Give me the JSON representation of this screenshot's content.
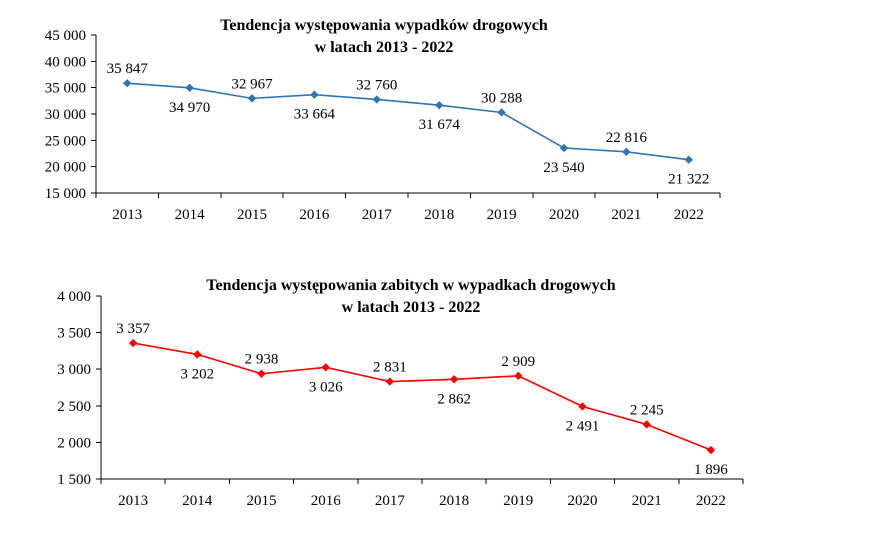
{
  "chart_data": [
    {
      "type": "line",
      "title": [
        "Tendencja występowania wypadków drogowych",
        "w latach 2013 - 2022"
      ],
      "categories": [
        "2013",
        "2014",
        "2015",
        "2016",
        "2017",
        "2018",
        "2019",
        "2020",
        "2021",
        "2022"
      ],
      "series": [
        {
          "values": [
            35847,
            34970,
            32967,
            33664,
            32760,
            31674,
            30288,
            23540,
            22816,
            21322
          ],
          "color": "#2e75b6",
          "marker": "diamond"
        }
      ],
      "data_labels": [
        "35 847",
        "34 970",
        "32 967",
        "33 664",
        "32 760",
        "31 674",
        "30 288",
        "23 540",
        "22 816",
        "21 322"
      ],
      "ylim": [
        15000,
        45000
      ],
      "yticks": [
        15000,
        20000,
        25000,
        30000,
        35000,
        40000,
        45000
      ],
      "ytick_labels": [
        "15 000",
        "20 000",
        "25 000",
        "30 000",
        "35 000",
        "40 000",
        "45 000"
      ],
      "xlabel": "",
      "ylabel": "",
      "grid": false,
      "legend": "none"
    },
    {
      "type": "line",
      "title": [
        "Tendencja występowania zabitych w wypadkach drogowych",
        "w latach 2013 - 2022"
      ],
      "categories": [
        "2013",
        "2014",
        "2015",
        "2016",
        "2017",
        "2018",
        "2019",
        "2020",
        "2021",
        "2022"
      ],
      "series": [
        {
          "values": [
            3357,
            3202,
            2938,
            3026,
            2831,
            2862,
            2909,
            2491,
            2245,
            1896
          ],
          "color": "#ff0000",
          "marker": "diamond"
        }
      ],
      "data_labels": [
        "3 357",
        "3 202",
        "2 938",
        "3 026",
        "2 831",
        "2 862",
        "2 909",
        "2 491",
        "2 245",
        "1 896"
      ],
      "ylim": [
        1500,
        4000
      ],
      "yticks": [
        1500,
        2000,
        2500,
        3000,
        3500,
        4000
      ],
      "ytick_labels": [
        "1 500",
        "2 000",
        "2 500",
        "3 000",
        "3 500",
        "4 000"
      ],
      "xlabel": "",
      "ylabel": "",
      "grid": false,
      "legend": "none"
    }
  ]
}
